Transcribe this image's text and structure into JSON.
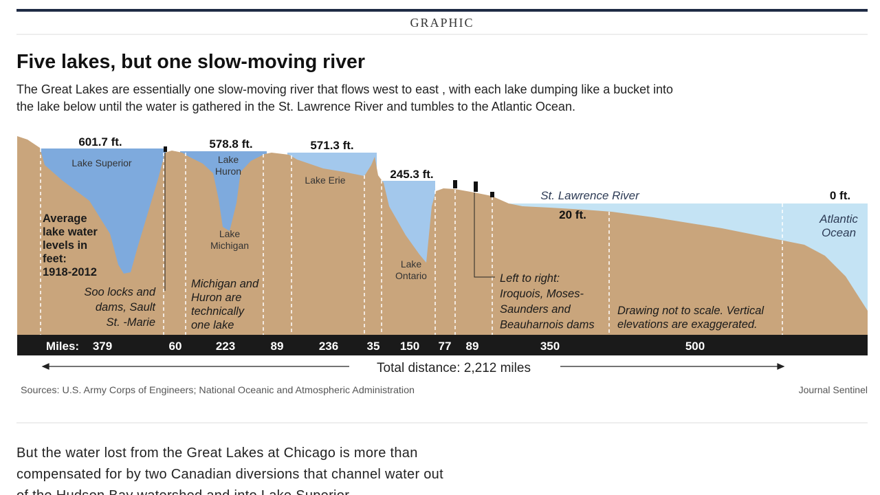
{
  "header": {
    "label": "GRAPHIC"
  },
  "graphic": {
    "title": "Five lakes, but one slow-moving river",
    "description_lines": [
      "The Great Lakes are essentially one slow-moving river that flows west to east , with each lake dumping like a bucket into",
      "the lake below until the water is gathered in the St. Lawrence River and tumbles to the Atlantic Ocean."
    ],
    "elevations": [
      "601.7 ft.",
      "578.8 ft.",
      "571.3 ft.",
      "245.3 ft.",
      "20 ft.",
      "0 ft."
    ],
    "water_labels": [
      [
        "Lake Superior"
      ],
      [
        "Lake",
        "Huron"
      ],
      [
        "Lake",
        "Michigan"
      ],
      [
        "Lake Erie"
      ],
      [
        "Lake",
        "Ontario"
      ],
      [
        "St. Lawrence River"
      ],
      [
        "Atlantic",
        "Ocean"
      ]
    ],
    "notes": [
      [
        "Average",
        "lake water",
        "levels in",
        "feet:",
        "1918-2012"
      ],
      [
        "Soo locks and",
        "dams, Sault",
        "St. -Marie"
      ],
      [
        "Michigan and",
        "Huron are",
        "technically",
        "one lake"
      ],
      [
        "Left to right:",
        "Iroquois, Moses-",
        "Saunders and",
        "Beauharnois dams"
      ],
      [
        "Drawing not to scale. Vertical",
        "elevations are exaggerated."
      ]
    ],
    "miles_label": "Miles:",
    "miles": [
      "379",
      "60",
      "223",
      "89",
      "236",
      "35",
      "150",
      "77",
      "89",
      "350",
      "500"
    ],
    "total_distance": "Total distance: 2,212 miles",
    "sources": "Sources: U.S. Army Corps of Engineers; National Oceanic and Atmospheric Administration",
    "credit": "Journal Sentinel"
  },
  "article": {
    "paragraph_lines": [
      "But the water lost from the Great Lakes at Chicago is more than",
      "compensated for by two Canadian diversions that channel water out",
      "of the Hudson Bay watershed and into Lake Superior."
    ]
  }
}
